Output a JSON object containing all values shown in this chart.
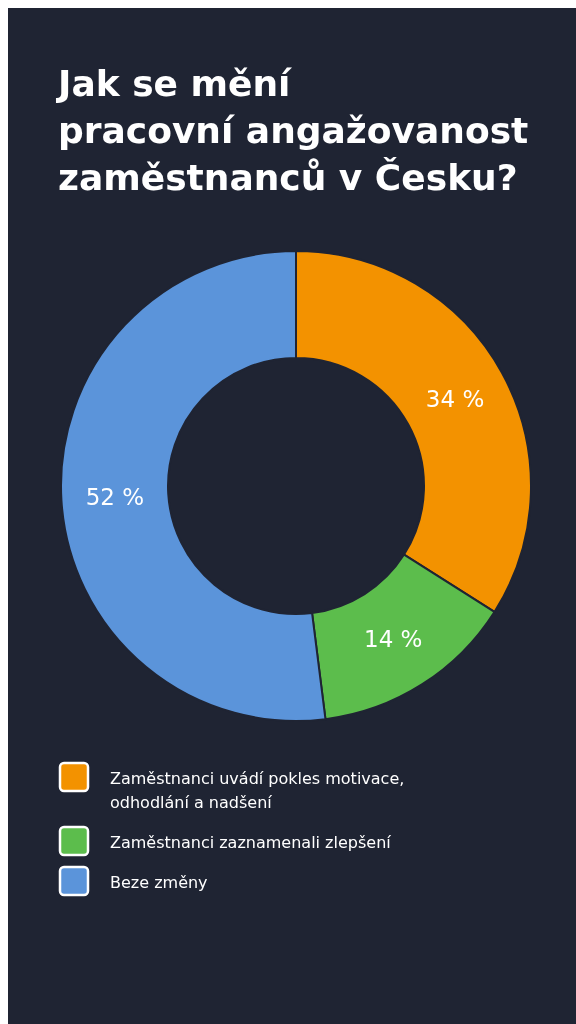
{
  "chart_data": {
    "type": "donut",
    "title": "Jak se mění\npracovní angažovanost\nzaměstnanců v Česku?",
    "categories": [
      "Zaměstnanci uvádí pokles motivace, odhodlání a nadšení",
      "Zaměstnanci zaznamenali zlepšení",
      "Beze změny"
    ],
    "values": [
      34,
      14,
      52
    ],
    "colors": [
      "#f39200",
      "#5cbd4c",
      "#5b94da"
    ],
    "value_labels": [
      "34 %",
      "14 %",
      "52 %"
    ],
    "legend": "bottom"
  }
}
